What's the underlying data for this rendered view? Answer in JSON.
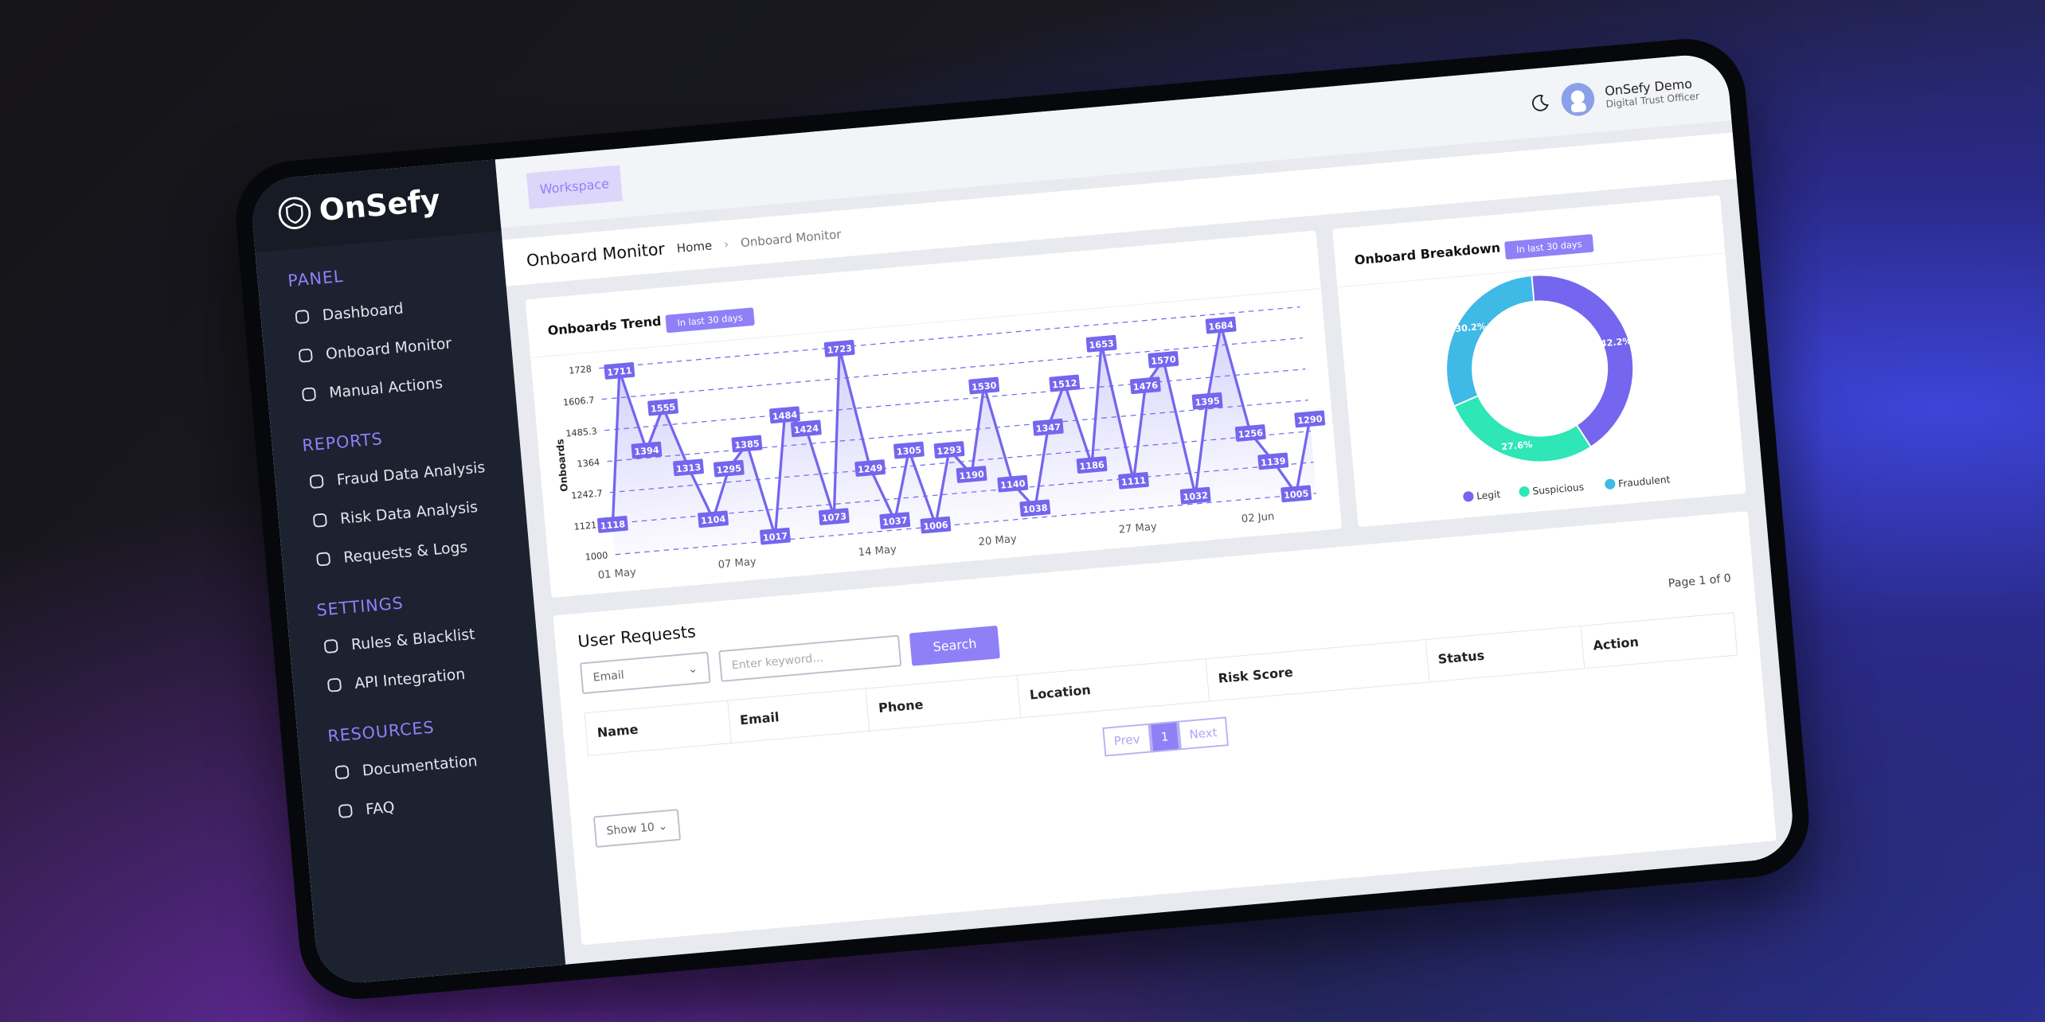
{
  "brand": "OnSefy",
  "sidebar": {
    "sections": [
      {
        "title": "PANEL",
        "items": [
          "Dashboard",
          "Onboard Monitor",
          "Manual Actions"
        ]
      },
      {
        "title": "REPORTS",
        "items": [
          "Fraud Data Analysis",
          "Risk Data Analysis",
          "Requests & Logs"
        ]
      },
      {
        "title": "SETTINGS",
        "items": [
          "Rules & Blacklist",
          "API Integration"
        ]
      },
      {
        "title": "RESOURCES",
        "items": [
          "Documentation",
          "FAQ"
        ]
      }
    ]
  },
  "topbar": {
    "tab": "Workspace",
    "user_name": "OnSefy Demo",
    "user_role": "Digital Trust Officer"
  },
  "breadcrumb": {
    "page_title": "Onboard Monitor",
    "items": [
      "Home",
      "Onboard Monitor"
    ]
  },
  "chart_data": [
    {
      "type": "line",
      "title": "Onboards Trend",
      "badge": "In last 30 days",
      "y_label": "Onboards",
      "categories": [
        "01 May",
        null,
        null,
        null,
        null,
        null,
        "07 May",
        null,
        null,
        null,
        null,
        null,
        null,
        "14 May",
        null,
        null,
        null,
        null,
        null,
        "20 May",
        null,
        null,
        null,
        null,
        null,
        null,
        "27 May",
        null,
        null,
        null,
        null,
        null,
        "02 Jun",
        null,
        null,
        null
      ],
      "values": [
        1118,
        1711,
        1394,
        1555,
        1313,
        1104,
        1295,
        1385,
        1017,
        1484,
        1424,
        1073,
        1723,
        1249,
        1037,
        1305,
        1006,
        1293,
        1190,
        1530,
        1140,
        1038,
        1347,
        1512,
        1186,
        1653,
        1111,
        1476,
        1570,
        1032,
        1395,
        1684,
        1256,
        1139,
        1005,
        1290
      ],
      "color": "#7466ee",
      "ylim": [
        1000,
        1728
      ],
      "yticks": [
        1000,
        1121.3,
        1242.7,
        1364,
        1485.3,
        1606.7,
        1728
      ],
      "grid": true
    },
    {
      "type": "donut",
      "title": "Onboard Breakdown",
      "badge": "In last 30 days",
      "categories": [
        "Legit",
        "Suspicious",
        "Fraudulent"
      ],
      "values": [
        42.2,
        27.6,
        30.2
      ],
      "value_labels": [
        "42.2%",
        "27.6%",
        "30.2%"
      ],
      "colors": [
        "#7466ee",
        "#2ee6b6",
        "#3fb9e6"
      ]
    }
  ],
  "user_requests": {
    "title": "User Requests",
    "filter": "Email",
    "search_placeholder": "Enter keyword...",
    "search_button": "Search",
    "columns": [
      "Name",
      "Email",
      "Phone",
      "Location",
      "Risk Score",
      "Status",
      "Action"
    ],
    "page_info": "Page 1 of 0",
    "pager": [
      "Prev",
      "1",
      "Next"
    ],
    "page_size": "Show 10"
  }
}
